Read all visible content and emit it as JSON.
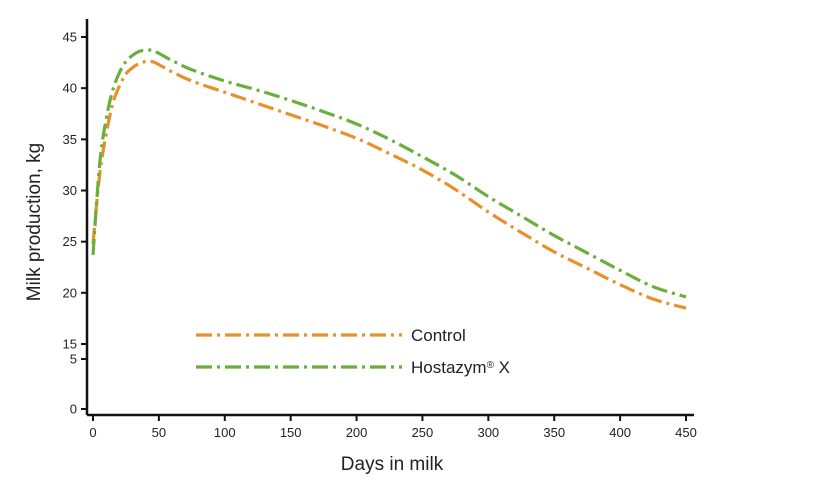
{
  "chart_data": {
    "type": "line",
    "title": "",
    "xlabel": "Days in milk",
    "ylabel": "Milk production, kg",
    "xlim": [
      0,
      450
    ],
    "x_ticks": [
      0,
      50,
      100,
      150,
      200,
      250,
      300,
      350,
      400,
      450
    ],
    "y_ticks_upper": [
      15,
      20,
      25,
      30,
      35,
      40,
      45
    ],
    "y_ticks_lower": [
      0,
      5
    ],
    "y_axis_break": [
      5,
      15
    ],
    "grid": false,
    "legend_position": "bottom-center",
    "series": [
      {
        "name": "Control",
        "legend_label": "Control",
        "color": "#E8912A",
        "dash": "dash-dot",
        "x": [
          0,
          5,
          10,
          15,
          20,
          25,
          30,
          35,
          40,
          45,
          50,
          60,
          75,
          100,
          125,
          150,
          175,
          200,
          225,
          250,
          275,
          300,
          325,
          350,
          375,
          400,
          425,
          450
        ],
        "y": [
          24.8,
          31.5,
          35.5,
          38.5,
          40.2,
          41.4,
          42.0,
          42.4,
          42.6,
          42.6,
          42.3,
          41.6,
          40.7,
          39.6,
          38.5,
          37.4,
          36.3,
          35.1,
          33.6,
          32.0,
          30.1,
          27.9,
          25.9,
          24.0,
          22.4,
          20.8,
          19.4,
          18.5
        ]
      },
      {
        "name": "Hostazym® X",
        "legend_label": "Hostazym",
        "legend_sup": "®",
        "legend_suffix": " X",
        "color": "#6AAE3C",
        "dash": "dash-dot",
        "x": [
          0,
          5,
          10,
          15,
          20,
          25,
          30,
          35,
          40,
          45,
          50,
          60,
          75,
          100,
          125,
          150,
          175,
          200,
          225,
          250,
          275,
          300,
          325,
          350,
          375,
          400,
          425,
          450
        ],
        "y": [
          23.7,
          32.5,
          37.0,
          39.8,
          41.5,
          42.6,
          43.2,
          43.6,
          43.7,
          43.7,
          43.4,
          42.7,
          41.8,
          40.7,
          39.8,
          38.8,
          37.7,
          36.5,
          35.0,
          33.3,
          31.5,
          29.4,
          27.5,
          25.6,
          23.9,
          22.2,
          20.6,
          19.6
        ]
      }
    ]
  }
}
